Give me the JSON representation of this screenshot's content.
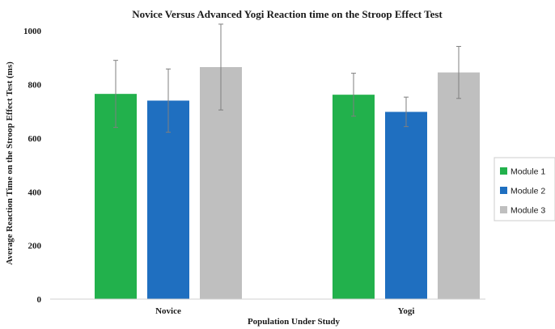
{
  "chart_data": {
    "type": "bar",
    "title": "Novice Versus Advanced Yogi  Reaction time on the Stroop Effect Test",
    "xlabel": "Population Under Study",
    "ylabel": "Average Reaction Time on the Stroop Effect Test (ms)",
    "ylim": [
      0,
      1100
    ],
    "yticks": [
      0,
      200,
      400,
      600,
      800,
      1000
    ],
    "categories": [
      "Novice",
      "Yogi"
    ],
    "series": [
      {
        "name": "Module 1",
        "color": "#22b14c",
        "values": [
          765,
          762
        ],
        "errors": [
          125,
          80
        ]
      },
      {
        "name": "Module 2",
        "color": "#1f6fc0",
        "values": [
          740,
          698
        ],
        "errors": [
          118,
          55
        ]
      },
      {
        "name": "Module 3",
        "color": "#bfbfbf",
        "values": [
          865,
          845
        ],
        "errors": [
          160,
          97
        ]
      }
    ],
    "legend_position": "right",
    "grid": false
  }
}
